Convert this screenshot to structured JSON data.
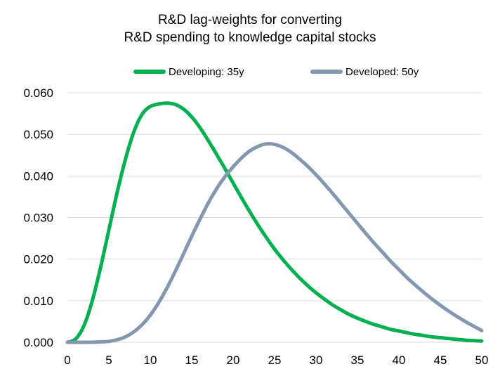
{
  "chart_data": {
    "type": "line",
    "title": [
      "R&D lag-weights for converting",
      "R&D spending to knowledge capital stocks"
    ],
    "xlabel": "",
    "ylabel": "",
    "xlim": [
      0,
      50
    ],
    "ylim": [
      0,
      0.06
    ],
    "x_ticks": [
      "0",
      "5",
      "10",
      "15",
      "20",
      "25",
      "30",
      "35",
      "40",
      "45",
      "50"
    ],
    "y_ticks": [
      "0.000",
      "0.010",
      "0.020",
      "0.030",
      "0.040",
      "0.050",
      "0.060"
    ],
    "grid": "horizontal",
    "legend_position": "top",
    "x": [
      0,
      1,
      2,
      3,
      4,
      5,
      6,
      7,
      8,
      9,
      10,
      11,
      12,
      13,
      14,
      15,
      16,
      17,
      18,
      19,
      20,
      21,
      22,
      23,
      24,
      25,
      26,
      27,
      28,
      29,
      30,
      31,
      32,
      33,
      34,
      35,
      36,
      37,
      38,
      39,
      40,
      41,
      42,
      43,
      44,
      45,
      46,
      47,
      48,
      49,
      50
    ],
    "series": [
      {
        "name": "Developing: 35y",
        "color": "#00B050",
        "values": [
          0.0,
          0.0008,
          0.004,
          0.01,
          0.018,
          0.027,
          0.036,
          0.044,
          0.0505,
          0.0548,
          0.0567,
          0.0573,
          0.0575,
          0.0572,
          0.0561,
          0.0542,
          0.0516,
          0.0485,
          0.0452,
          0.0418,
          0.0383,
          0.0348,
          0.0314,
          0.0282,
          0.0252,
          0.0224,
          0.0199,
          0.0176,
          0.0155,
          0.0136,
          0.0119,
          0.0104,
          0.009,
          0.0078,
          0.0067,
          0.0058,
          0.005,
          0.0043,
          0.0037,
          0.0031,
          0.0027,
          0.0023,
          0.0019,
          0.0016,
          0.0013,
          0.0011,
          0.0009,
          0.0007,
          0.0005,
          0.0004,
          0.0003
        ]
      },
      {
        "name": "Developed: 50y",
        "color": "#8497B0",
        "values": [
          0.0,
          0.0,
          0.0,
          0.0,
          0.0001,
          0.0002,
          0.0006,
          0.0013,
          0.0025,
          0.0042,
          0.0065,
          0.0095,
          0.013,
          0.017,
          0.0212,
          0.0255,
          0.0296,
          0.0335,
          0.0369,
          0.0398,
          0.0422,
          0.0443,
          0.046,
          0.0471,
          0.0477,
          0.0476,
          0.0469,
          0.0457,
          0.0441,
          0.0423,
          0.0403,
          0.0381,
          0.0358,
          0.0334,
          0.031,
          0.0286,
          0.0262,
          0.0239,
          0.0217,
          0.0195,
          0.0175,
          0.0155,
          0.0137,
          0.012,
          0.0104,
          0.0089,
          0.0075,
          0.0062,
          0.005,
          0.0039,
          0.0028
        ]
      }
    ]
  }
}
